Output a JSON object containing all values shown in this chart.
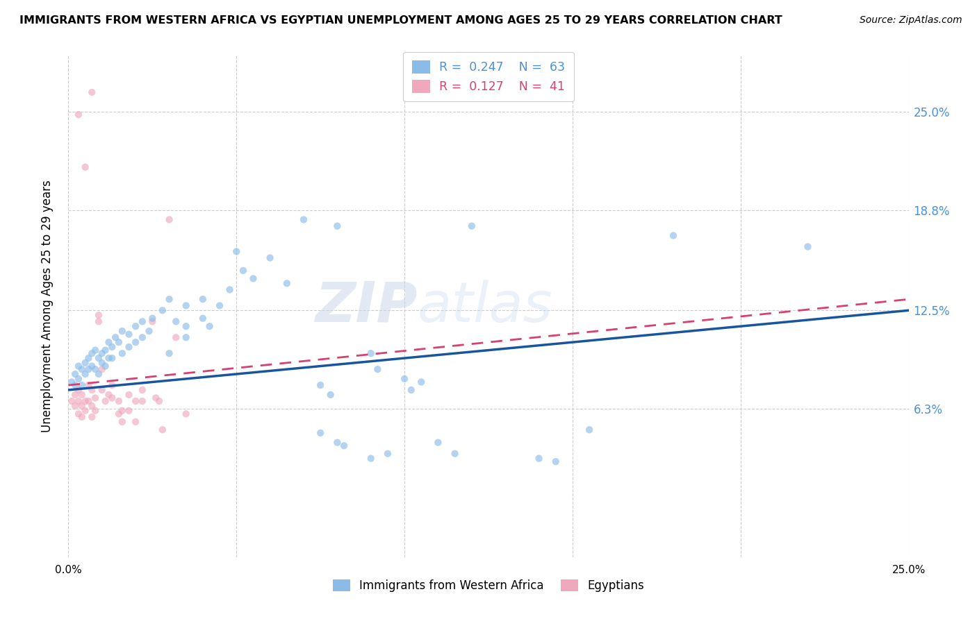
{
  "title": "IMMIGRANTS FROM WESTERN AFRICA VS EGYPTIAN UNEMPLOYMENT AMONG AGES 25 TO 29 YEARS CORRELATION CHART",
  "source": "Source: ZipAtlas.com",
  "ylabel": "Unemployment Among Ages 25 to 29 years",
  "xlim": [
    0.0,
    0.25
  ],
  "ylim": [
    -0.03,
    0.285
  ],
  "ytick_values": [
    0.063,
    0.125,
    0.188,
    0.25
  ],
  "ytick_labels": [
    "6.3%",
    "12.5%",
    "18.8%",
    "25.0%"
  ],
  "xtick_values": [
    0.0,
    0.05,
    0.1,
    0.15,
    0.2,
    0.25
  ],
  "xtick_labels": [
    "0.0%",
    "",
    "",
    "",
    "",
    "25.0%"
  ],
  "blue_scatter": [
    [
      0.001,
      0.08
    ],
    [
      0.002,
      0.085
    ],
    [
      0.002,
      0.078
    ],
    [
      0.003,
      0.09
    ],
    [
      0.003,
      0.082
    ],
    [
      0.004,
      0.088
    ],
    [
      0.004,
      0.078
    ],
    [
      0.005,
      0.092
    ],
    [
      0.005,
      0.085
    ],
    [
      0.006,
      0.095
    ],
    [
      0.006,
      0.088
    ],
    [
      0.007,
      0.098
    ],
    [
      0.007,
      0.09
    ],
    [
      0.008,
      0.1
    ],
    [
      0.008,
      0.088
    ],
    [
      0.009,
      0.095
    ],
    [
      0.009,
      0.085
    ],
    [
      0.01,
      0.098
    ],
    [
      0.01,
      0.092
    ],
    [
      0.011,
      0.1
    ],
    [
      0.011,
      0.09
    ],
    [
      0.012,
      0.105
    ],
    [
      0.012,
      0.095
    ],
    [
      0.013,
      0.102
    ],
    [
      0.013,
      0.095
    ],
    [
      0.014,
      0.108
    ],
    [
      0.015,
      0.105
    ],
    [
      0.016,
      0.112
    ],
    [
      0.016,
      0.098
    ],
    [
      0.018,
      0.11
    ],
    [
      0.018,
      0.102
    ],
    [
      0.02,
      0.115
    ],
    [
      0.02,
      0.105
    ],
    [
      0.022,
      0.108
    ],
    [
      0.022,
      0.118
    ],
    [
      0.024,
      0.112
    ],
    [
      0.025,
      0.12
    ],
    [
      0.028,
      0.125
    ],
    [
      0.03,
      0.132
    ],
    [
      0.03,
      0.098
    ],
    [
      0.032,
      0.118
    ],
    [
      0.035,
      0.128
    ],
    [
      0.035,
      0.115
    ],
    [
      0.035,
      0.108
    ],
    [
      0.04,
      0.132
    ],
    [
      0.04,
      0.12
    ],
    [
      0.042,
      0.115
    ],
    [
      0.045,
      0.128
    ],
    [
      0.048,
      0.138
    ],
    [
      0.05,
      0.162
    ],
    [
      0.052,
      0.15
    ],
    [
      0.055,
      0.145
    ],
    [
      0.06,
      0.158
    ],
    [
      0.065,
      0.142
    ],
    [
      0.07,
      0.182
    ],
    [
      0.075,
      0.078
    ],
    [
      0.078,
      0.072
    ],
    [
      0.08,
      0.178
    ],
    [
      0.09,
      0.098
    ],
    [
      0.092,
      0.088
    ],
    [
      0.1,
      0.082
    ],
    [
      0.102,
      0.075
    ],
    [
      0.105,
      0.08
    ],
    [
      0.12,
      0.178
    ],
    [
      0.18,
      0.172
    ],
    [
      0.22,
      0.165
    ],
    [
      0.075,
      0.048
    ],
    [
      0.08,
      0.042
    ],
    [
      0.082,
      0.04
    ],
    [
      0.09,
      0.032
    ],
    [
      0.095,
      0.035
    ],
    [
      0.11,
      0.042
    ],
    [
      0.115,
      0.035
    ],
    [
      0.14,
      0.032
    ],
    [
      0.145,
      0.03
    ],
    [
      0.155,
      0.05
    ]
  ],
  "pink_scatter": [
    [
      0.001,
      0.068
    ],
    [
      0.002,
      0.072
    ],
    [
      0.002,
      0.065
    ],
    [
      0.003,
      0.075
    ],
    [
      0.003,
      0.068
    ],
    [
      0.003,
      0.06
    ],
    [
      0.004,
      0.072
    ],
    [
      0.004,
      0.065
    ],
    [
      0.004,
      0.058
    ],
    [
      0.005,
      0.068
    ],
    [
      0.005,
      0.062
    ],
    [
      0.006,
      0.078
    ],
    [
      0.006,
      0.068
    ],
    [
      0.007,
      0.075
    ],
    [
      0.007,
      0.065
    ],
    [
      0.007,
      0.058
    ],
    [
      0.008,
      0.07
    ],
    [
      0.008,
      0.062
    ],
    [
      0.009,
      0.122
    ],
    [
      0.009,
      0.118
    ],
    [
      0.01,
      0.088
    ],
    [
      0.01,
      0.075
    ],
    [
      0.011,
      0.068
    ],
    [
      0.012,
      0.072
    ],
    [
      0.013,
      0.078
    ],
    [
      0.013,
      0.07
    ],
    [
      0.015,
      0.068
    ],
    [
      0.015,
      0.06
    ],
    [
      0.016,
      0.062
    ],
    [
      0.016,
      0.055
    ],
    [
      0.018,
      0.072
    ],
    [
      0.018,
      0.062
    ],
    [
      0.02,
      0.068
    ],
    [
      0.02,
      0.055
    ],
    [
      0.022,
      0.075
    ],
    [
      0.022,
      0.068
    ],
    [
      0.025,
      0.118
    ],
    [
      0.026,
      0.07
    ],
    [
      0.027,
      0.068
    ],
    [
      0.028,
      0.05
    ],
    [
      0.03,
      0.182
    ],
    [
      0.032,
      0.108
    ],
    [
      0.035,
      0.06
    ],
    [
      0.003,
      0.248
    ],
    [
      0.005,
      0.215
    ],
    [
      0.007,
      0.262
    ]
  ],
  "blue_line_y_start": 0.075,
  "blue_line_y_end": 0.125,
  "pink_line_y_start": 0.078,
  "pink_line_y_end": 0.132,
  "watermark_zip": "ZIP",
  "watermark_atlas": "atlas",
  "scatter_size": 55,
  "scatter_alpha": 0.65,
  "blue_color": "#8bbce8",
  "pink_color": "#f0a8bc",
  "blue_line_color": "#1855a0",
  "pink_line_color": "#d84070",
  "grid_color": "#cccccc",
  "background_color": "#ffffff",
  "right_axis_color": "#4a90d9"
}
